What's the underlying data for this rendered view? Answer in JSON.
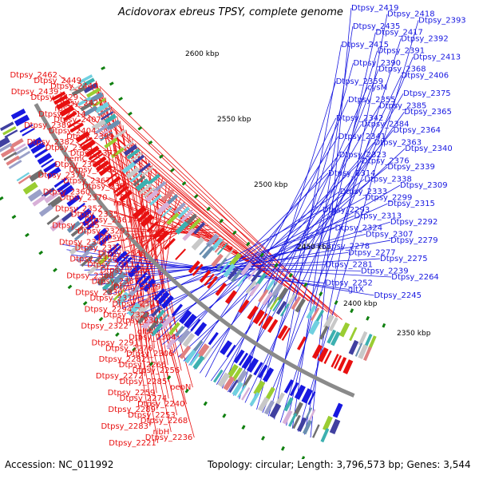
{
  "title": "Acidovorax ebreus TPSY, complete genome",
  "footer": {
    "accession": "Accession: NC_011992",
    "summary": "Topology: circular; Length: 3,796,573 bp; Genes: 3,544"
  },
  "colors": {
    "forward": "#e81010",
    "reverse": "#1818e0",
    "backbone": "#8a8a8a",
    "tick": "#108010",
    "feature_palette": [
      "#3cb0b0",
      "#9acd32",
      "#c8c8c8",
      "#6a8fb0",
      "#e08080",
      "#4040a0",
      "#9aa0c8",
      "#70d0e0",
      "#d8b0d8",
      "#707070"
    ]
  },
  "kbp_marks": [
    "2600 kbp",
    "2550 kbp",
    "2500 kbp",
    "2450 kbp",
    "2400 kbp",
    "2350 kbp"
  ],
  "left_labels": [
    "Dtpsy_2462",
    "Dtpsy_2449",
    "Dtpsy_2440",
    "Dtpsy_2439",
    "Dtpsy_2429",
    "Dtpsy_2421",
    "rpsT",
    "Dtpsy_2414",
    "Dtpsy_2407",
    "Dtpsy_2389",
    "Dtpsy_2404",
    "Dtpsy_2399",
    "Dtpsy_2382",
    "Dtpsy_2383",
    "Dtpsy_2372",
    "hemC",
    "Dtpsy_2381",
    "Dtpsy_2362",
    "Dtpsy_2379",
    "Dtpsy_2367",
    "Dtpsy_2354",
    "Dtpsy_2360",
    "Dtpsy_2370",
    "rpsU",
    "Dtpsy_2352",
    "Dtpsy_2335",
    "Dtpsy_2361",
    "Dtpsy_2345",
    "Dtpsy_2329",
    "Dtpsy_2325",
    "Dtpsy_2349",
    "Dtpsy_2332",
    "Dtpsy_2336",
    "Dtpsy_2326",
    "Dtpsy_2311",
    "Dtpsy_2328",
    "Dtpsy_2308",
    "Dtpsy_2337",
    "Dtpsy_2319",
    "Dtpsy_2330",
    "Dtpsy_2320",
    "Dtpsy_2303",
    "Dtpsy_2294",
    "Dtpsy_2321",
    "Dtpsy_2305",
    "Dtpsy_2322",
    "gltA",
    "Dtpsy_2304",
    "Dtpsy_2291",
    "Dtpsy_2276",
    "Dtpsy_2306",
    "Dtpsy_2282",
    "Dtpsy_2266",
    "Dtpsy_2256",
    "Dtpsy_2272",
    "Dtpsy_2285",
    "pepN",
    "Dtpsy_2259",
    "Dtpsy_2274",
    "Dtpsy_2240",
    "Dtpsy_2289",
    "Dtpsy_2253",
    "Dtpsy_2268",
    "Dtpsy_2283",
    "ribH",
    "Dtpsy_2236",
    "Dtpsy_2221"
  ],
  "right_labels": [
    "Dtpsy_2419",
    "Dtpsy_2418",
    "Dtpsy_2393",
    "Dtpsy_2435",
    "Dtpsy_2417",
    "Dtpsy_2392",
    "Dtpsy_2415",
    "Dtpsy_2391",
    "Dtpsy_2413",
    "Dtpsy_2390",
    "Dtpsy_2368",
    "Dtpsy_2406",
    "Dtpsy_2359",
    "cysM",
    "Dtpsy_2375",
    "Dtpsy_2355",
    "Dtpsy_2385",
    "Dtpsy_2365",
    "Dtpsy_2342",
    "Dtpsy_2384",
    "Dtpsy_2364",
    "Dtpsy_2341",
    "Dtpsy_2363",
    "Dtpsy_2340",
    "Dtpsy_2323",
    "Dtpsy_2376",
    "Dtpsy_2339",
    "Dtpsy_2314",
    "Dtpsy_2338",
    "Dtpsy_2309",
    "Dtpsy_2333",
    "Dtpsy_2299",
    "Dtpsy_2315",
    "Dtpsy_2293",
    "Dtpsy_2313",
    "Dtpsy_2292",
    "Dtpsy_2324",
    "Dtpsy_2307",
    "Dtpsy_2279",
    "Dtpsy_2278",
    "Dtpsy_2277",
    "Dtpsy_2275",
    "Dtpsy_2281",
    "Dtpsy_2239",
    "Dtpsy_2264",
    "Dtpsy_2252",
    "gltX",
    "Dtpsy_2245"
  ]
}
